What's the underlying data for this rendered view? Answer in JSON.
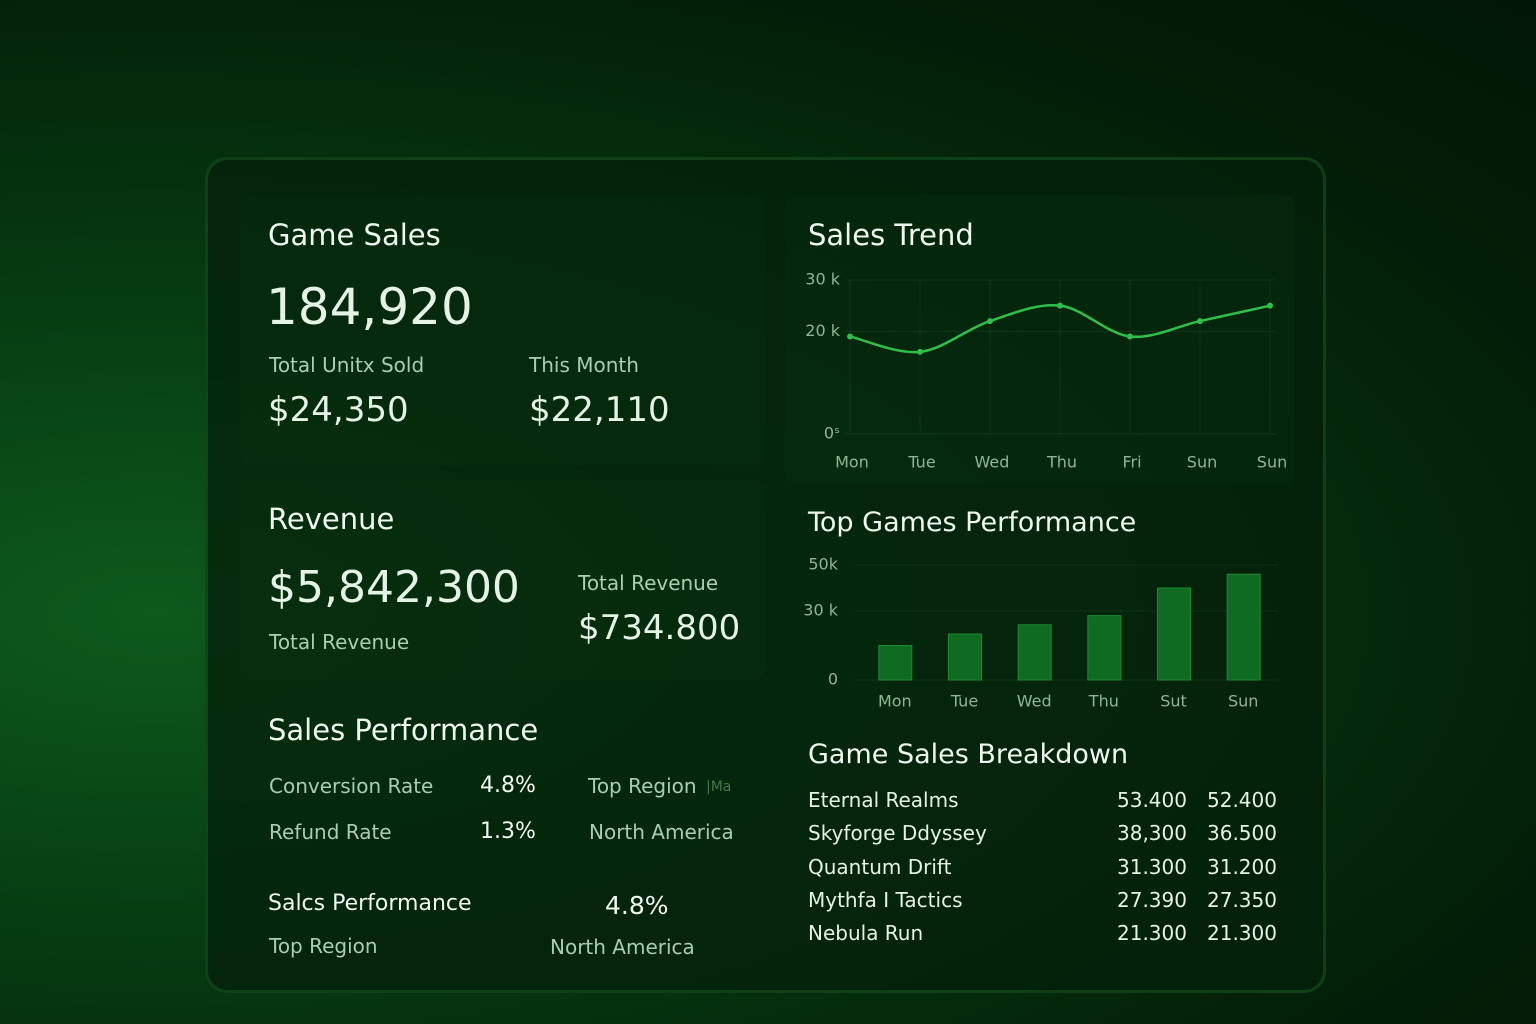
{
  "game_sales": {
    "title": "Game Sales",
    "total": "184,920",
    "units_label": "Total Unitx Sold",
    "units_value": "$24,350",
    "month_label": "This Month",
    "month_value": "$22,110"
  },
  "revenue": {
    "title": "Revenue",
    "value": "$5,842,300",
    "label": "Total Revenue",
    "side_label": "Total Revenue",
    "side_value": "$734.800"
  },
  "sales_performance": {
    "title": "Sales Performance",
    "rows": [
      [
        "Conversion Rate",
        "4.8%"
      ],
      [
        "Refund Rate",
        "1.3%"
      ]
    ],
    "region_label": "Top Region",
    "region_hint": "|Ma",
    "region_value": "North America"
  },
  "footer": {
    "title": "Salcs Performance",
    "value": "4.8%",
    "region_label": "Top Region",
    "region_value": "North America"
  },
  "chart_data": [
    {
      "type": "line",
      "title": "Sales Trend",
      "categories": [
        "Mon",
        "Tue",
        "Wed",
        "Thu",
        "Fri",
        "Sun",
        "Sun"
      ],
      "values": [
        19000,
        16000,
        22000,
        25000,
        19000,
        22000,
        25000
      ],
      "color": "#2fbf4a",
      "ylim": [
        0,
        30000
      ],
      "yticks": [
        {
          "value": 30000,
          "label": "30 k"
        },
        {
          "value": 20000,
          "label": "20 k"
        },
        {
          "value": 0,
          "label": "0ˢ"
        }
      ],
      "grid": true
    },
    {
      "type": "bar",
      "title": "Top Games Performance",
      "categories": [
        "Mon",
        "Tue",
        "Wed",
        "Thu",
        "Sut",
        "Sun"
      ],
      "values": [
        15000,
        20000,
        24000,
        28000,
        40000,
        46000
      ],
      "color": "#0f6b22",
      "ylim": [
        0,
        50000
      ],
      "yticks": [
        {
          "value": 50000,
          "label": "50k"
        },
        {
          "value": 30000,
          "label": "30 k"
        },
        0
      ],
      "grid": true
    }
  ],
  "breakdown": {
    "title": "Game Sales Breakdown",
    "rows": [
      [
        "Eternal Realms",
        "53.400",
        "52.400"
      ],
      [
        "Skyforge Ddyssey",
        "38,300",
        "36.500"
      ],
      [
        "Quantum Drift",
        "31.300",
        "31.200"
      ],
      [
        "Mythfa I Tactics",
        "27.390",
        "27.350"
      ],
      [
        "Nebula Run",
        "21.300",
        "21.300"
      ]
    ]
  }
}
